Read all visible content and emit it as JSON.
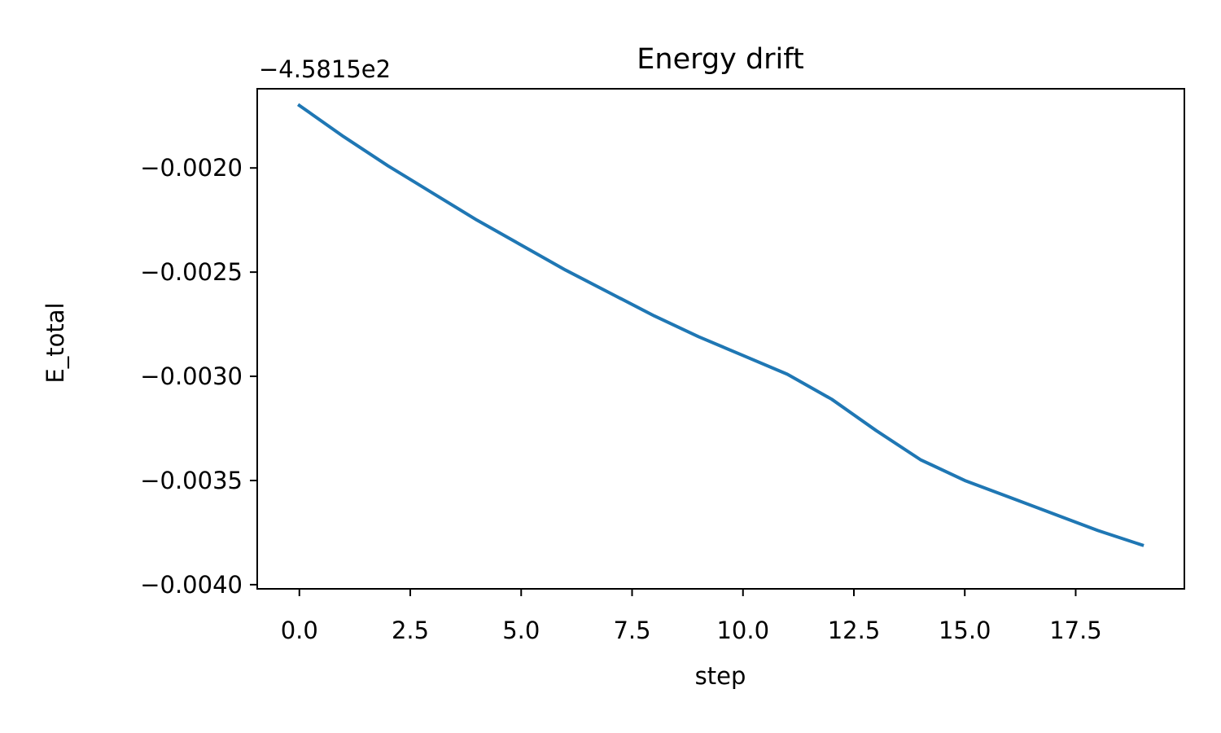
{
  "chart_data": {
    "type": "line",
    "title": "Energy drift",
    "xlabel": "step",
    "ylabel": "E_total",
    "y_offset_text": "−4.5815e2",
    "xlim": [
      -0.95,
      19.95
    ],
    "ylim": [
      -0.00402,
      -0.00162
    ],
    "x_ticks": [
      0.0,
      2.5,
      5.0,
      7.5,
      10.0,
      12.5,
      15.0,
      17.5
    ],
    "x_tick_labels": [
      "0.0",
      "2.5",
      "5.0",
      "7.5",
      "10.0",
      "12.5",
      "15.0",
      "17.5"
    ],
    "y_ticks": [
      -0.002,
      -0.0025,
      -0.003,
      -0.0035,
      -0.004
    ],
    "y_tick_labels": [
      "−0.0020",
      "−0.0025",
      "−0.0030",
      "−0.0035",
      "−0.0040"
    ],
    "grid": false,
    "series": [
      {
        "color": "#1f77b4",
        "x": [
          0,
          1,
          2,
          3,
          4,
          5,
          6,
          7,
          8,
          9,
          10,
          11,
          12,
          13,
          14,
          15,
          16,
          17,
          18,
          19
        ],
        "values": [
          -0.0017,
          -0.00185,
          -0.00199,
          -0.00212,
          -0.00225,
          -0.00237,
          -0.00249,
          -0.0026,
          -0.00271,
          -0.00281,
          -0.0029,
          -0.00299,
          -0.00311,
          -0.00326,
          -0.0034,
          -0.0035,
          -0.00358,
          -0.00366,
          -0.00374,
          -0.00381
        ]
      }
    ]
  }
}
